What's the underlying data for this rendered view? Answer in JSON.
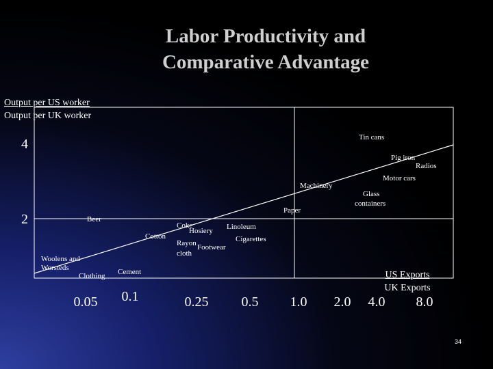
{
  "slide": {
    "title_line1": "Labor Productivity and",
    "title_line2": "Comparative Advantage",
    "y_axis_label_numerator": "Output per US worker",
    "y_axis_label_denominator": "Output per UK worker",
    "x_axis_label_numerator": "US Exports",
    "x_axis_label_denominator": "UK Exports",
    "slide_number": "34"
  },
  "colors": {
    "background_corner": "#2f3fa0",
    "background": "#000000",
    "text": "#ffffff",
    "title": "#cfcfcf",
    "lines": "#ffffff"
  },
  "chart_data": {
    "type": "scatter",
    "title": "Labor Productivity and Comparative Advantage",
    "ylabel": "Output per US worker / Output per UK worker",
    "xlabel": "US Exports / UK Exports",
    "x_scale": "log",
    "x_ticks": [
      "0.05",
      "0.1",
      "0.25",
      "0.5",
      "1.0",
      "2.0",
      "4.0",
      "8.0"
    ],
    "y_ticks": [
      "2",
      "4"
    ],
    "ylim": [
      0,
      5
    ],
    "xlim": [
      0.035,
      11
    ],
    "grid": false,
    "reference_lines": [
      {
        "axis": "x",
        "value": 1.0
      },
      {
        "axis": "y",
        "value": 2
      }
    ],
    "trend_line": {
      "from": {
        "x": 0.035,
        "y": 0.8
      },
      "to": {
        "x": 11,
        "y": 4.3
      }
    },
    "points": [
      {
        "label": "Tin cans",
        "x": 4.0,
        "y": 4.1
      },
      {
        "label": "Pig iron",
        "x": 5.0,
        "y": 3.6
      },
      {
        "label": "Radios",
        "x": 7.0,
        "y": 3.4
      },
      {
        "label": "Motor cars",
        "x": 5.5,
        "y": 3.1
      },
      {
        "label": "Machinery",
        "x": 1.1,
        "y": 2.9
      },
      {
        "label": "Glass containers",
        "x": 3.0,
        "y": 2.5
      },
      {
        "label": "Paper",
        "x": 1.0,
        "y": 2.2
      },
      {
        "label": "Beer",
        "x": 0.065,
        "y": 2.0
      },
      {
        "label": "Coke",
        "x": 0.25,
        "y": 1.9
      },
      {
        "label": "Hosiery",
        "x": 0.3,
        "y": 1.8
      },
      {
        "label": "Linoleum",
        "x": 0.5,
        "y": 1.9
      },
      {
        "label": "Cotton",
        "x": 0.16,
        "y": 1.7
      },
      {
        "label": "Cigarettes",
        "x": 0.6,
        "y": 1.6
      },
      {
        "label": "Rayon cloth",
        "x": 0.25,
        "y": 1.5
      },
      {
        "label": "Footwear",
        "x": 0.3,
        "y": 1.45
      },
      {
        "label": "Woolens and Worsteds",
        "x": 0.04,
        "y": 1.2
      },
      {
        "label": "Clothing",
        "x": 0.06,
        "y": 1.0
      },
      {
        "label": "Cement",
        "x": 0.1,
        "y": 1.05
      }
    ]
  }
}
